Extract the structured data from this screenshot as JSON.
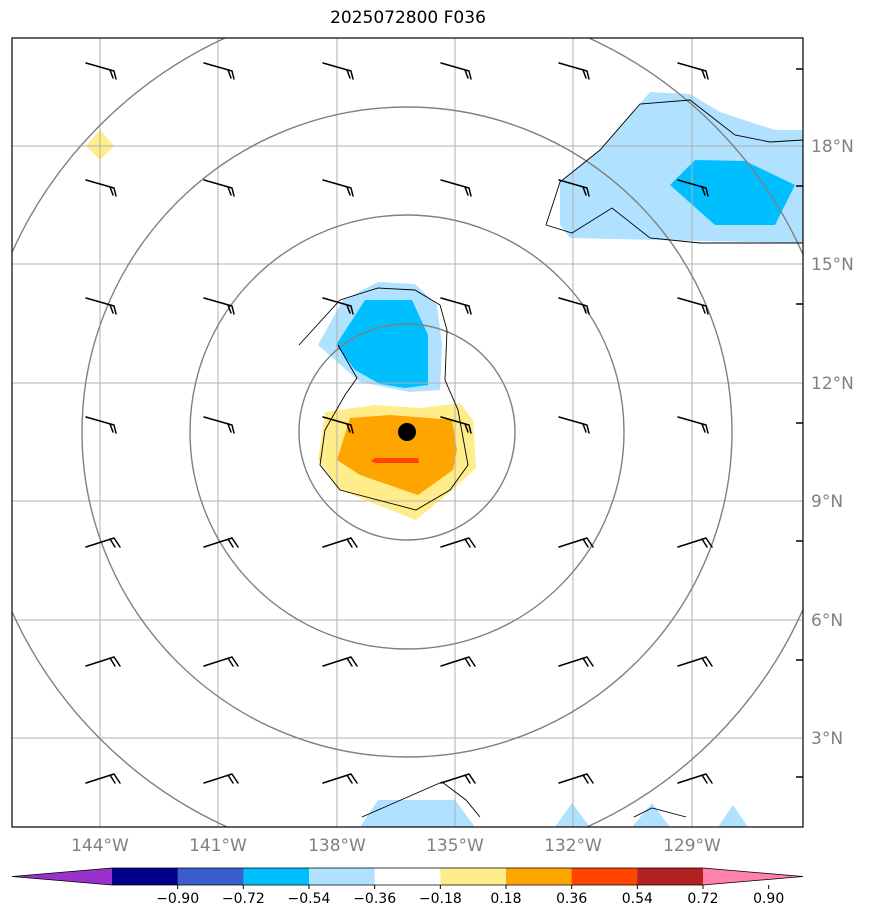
{
  "title": "2025072800 F036",
  "lon_labels": [
    "144°W",
    "141°W",
    "138°W",
    "135°W",
    "132°W",
    "129°W"
  ],
  "lat_labels": [
    "18°N",
    "15°N",
    "12°N",
    "9°N",
    "6°N",
    "3°N"
  ],
  "colorbar": {
    "ticks": [
      "−0.90",
      "−0.72",
      "−0.54",
      "−0.36",
      "−0.18",
      "0.18",
      "0.36",
      "0.54",
      "0.72",
      "0.90"
    ],
    "colors": [
      "#9932cc",
      "#00008b",
      "#3a5fcd",
      "#00bfff",
      "#b0e2ff",
      "#ffffff",
      "#ffec8b",
      "#ffa500",
      "#ff4500",
      "#b22222",
      "#ff82ab"
    ]
  },
  "fill_colors": {
    "light_blue": "#b0e2ff",
    "blue": "#00bfff",
    "light_yellow": "#ffec8b",
    "orange": "#ffa500",
    "red_orange": "#ff4500"
  },
  "center_marker_color": "#000000"
}
